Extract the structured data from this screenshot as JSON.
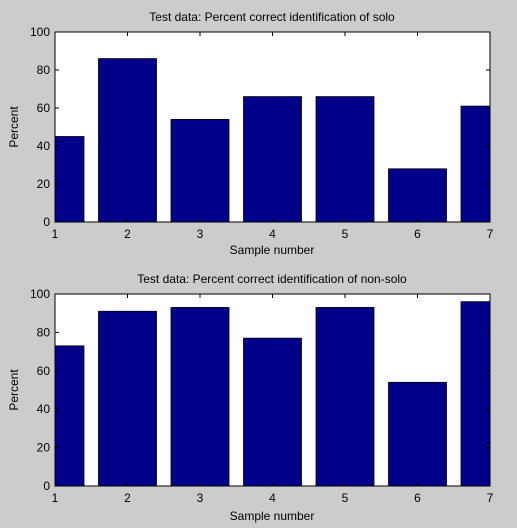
{
  "figure": {
    "background": "#cccccc",
    "axes_background": "#ffffff",
    "bar_color": "#00008b"
  },
  "chart_data": [
    {
      "type": "bar",
      "title": "Test data: Percent correct identification of solo",
      "xlabel": "Sample number",
      "ylabel": "Percent",
      "categories": [
        1,
        2,
        3,
        4,
        5,
        6,
        7
      ],
      "values": [
        45,
        86,
        54,
        66,
        66,
        28,
        61
      ],
      "xlim": [
        1,
        7
      ],
      "ylim": [
        0,
        100
      ],
      "xticks": [
        "1",
        "2",
        "3",
        "4",
        "5",
        "6",
        "7"
      ],
      "yticks": [
        "0",
        "20",
        "40",
        "60",
        "80",
        "100"
      ],
      "grid": false,
      "bar_color": "#00008b"
    },
    {
      "type": "bar",
      "title": "Test data: Percent correct identification of non-solo",
      "xlabel": "Sample number",
      "ylabel": "Percent",
      "categories": [
        1,
        2,
        3,
        4,
        5,
        6,
        7
      ],
      "values": [
        73,
        91,
        93,
        77,
        93,
        54,
        96
      ],
      "xlim": [
        1,
        7
      ],
      "ylim": [
        0,
        100
      ],
      "xticks": [
        "1",
        "2",
        "3",
        "4",
        "5",
        "6",
        "7"
      ],
      "yticks": [
        "0",
        "20",
        "40",
        "60",
        "80",
        "100"
      ],
      "grid": false,
      "bar_color": "#00008b"
    }
  ]
}
